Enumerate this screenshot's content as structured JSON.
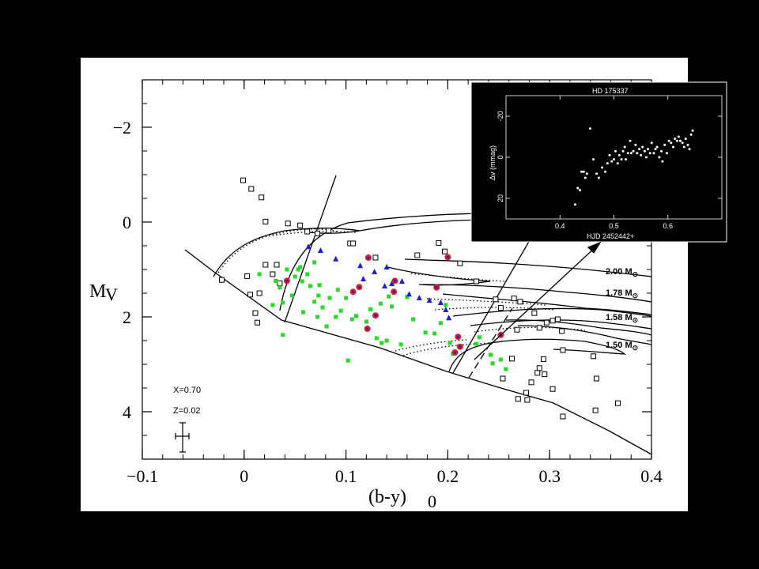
{
  "chart_data": [
    {
      "type": "scatter",
      "title": "",
      "xlabel": "(b-y)",
      "xlabel_sub": "0",
      "ylabel": "M",
      "ylabel_sub": "V",
      "xlim": [
        -0.1,
        0.4
      ],
      "ylim": [
        5.0,
        -3.0
      ],
      "x_ticks": [
        "-0.1",
        "0",
        "0.1",
        "0.2",
        "0.3",
        "0.4"
      ],
      "y_ticks": [
        "-2",
        "0",
        "2",
        "4"
      ],
      "annotations": [
        "X=0.70",
        "Z=0.02"
      ],
      "track_labels": [
        "2.00 M",
        "1.78 M",
        "1.58 M",
        "1.50 M"
      ],
      "track_label_symbol": "⊙",
      "series": [
        {
          "marker": "open-square",
          "color": "#000000",
          "points": [
            [
              -0.001,
              -0.88
            ],
            [
              0.007,
              -0.7
            ],
            [
              0.017,
              -0.52
            ],
            [
              0.021,
              -0.01
            ],
            [
              0.043,
              0.03
            ],
            [
              0.055,
              0.07
            ],
            [
              0.062,
              0.2
            ],
            [
              0.072,
              0.24
            ],
            [
              0.083,
              0.18
            ],
            [
              0.104,
              0.45
            ],
            [
              0.107,
              0.45
            ],
            [
              0.003,
              1.14
            ],
            [
              0.006,
              1.53
            ],
            [
              0.011,
              1.92
            ],
            [
              0.013,
              2.12
            ],
            [
              0.035,
              1.29
            ],
            [
              0.015,
              1.5
            ],
            [
              0.021,
              0.9
            ],
            [
              0.028,
              1.1
            ],
            [
              -0.022,
              1.22
            ],
            [
              0.032,
              0.9
            ],
            [
              0.129,
              0.75
            ],
            [
              0.17,
              0.7
            ],
            [
              0.191,
              0.44
            ],
            [
              0.197,
              0.62
            ],
            [
              0.212,
              0.87
            ],
            [
              0.228,
              1.25
            ],
            [
              0.247,
              1.63
            ],
            [
              0.252,
              1.81
            ],
            [
              0.265,
              1.61
            ],
            [
              0.271,
              1.68
            ],
            [
              0.268,
              2.27
            ],
            [
              0.285,
              1.92
            ],
            [
              0.297,
              2.12
            ],
            [
              0.303,
              2.08
            ],
            [
              0.308,
              2.05
            ],
            [
              0.312,
              2.3
            ],
            [
              0.313,
              2.7
            ],
            [
              0.294,
              2.89
            ],
            [
              0.29,
              3.08
            ],
            [
              0.288,
              3.18
            ],
            [
              0.282,
              3.38
            ],
            [
              0.295,
              3.21
            ],
            [
              0.303,
              3.52
            ],
            [
              0.277,
              3.6
            ],
            [
              0.278,
              3.75
            ],
            [
              0.269,
              3.73
            ],
            [
              0.313,
              4.1
            ],
            [
              0.343,
              2.83
            ],
            [
              0.346,
              3.3
            ],
            [
              0.367,
              3.82
            ],
            [
              0.345,
              3.97
            ],
            [
              0.254,
              3.3
            ],
            [
              0.263,
              2.88
            ],
            [
              0.29,
              2.23
            ]
          ]
        },
        {
          "marker": "filled-square",
          "color": "#22dd22",
          "points": [
            [
              0.015,
              1.1
            ],
            [
              0.031,
              1.24
            ],
            [
              0.035,
              1.38
            ],
            [
              0.038,
              1.7
            ],
            [
              0.042,
              1.0
            ],
            [
              0.047,
              1.55
            ],
            [
              0.05,
              1.15
            ],
            [
              0.055,
              0.95
            ],
            [
              0.057,
              1.25
            ],
            [
              0.062,
              1.1
            ],
            [
              0.065,
              1.35
            ],
            [
              0.069,
              0.85
            ],
            [
              0.069,
              1.68
            ],
            [
              0.074,
              1.33
            ],
            [
              0.073,
              1.55
            ],
            [
              0.077,
              1.8
            ],
            [
              0.081,
              2.2
            ],
            [
              0.084,
              1.6
            ],
            [
              0.092,
              1.43
            ],
            [
              0.095,
              1.87
            ],
            [
              0.1,
              1.6
            ],
            [
              0.106,
              2.05
            ],
            [
              0.11,
              1.98
            ],
            [
              0.12,
              2.1
            ],
            [
              0.124,
              1.84
            ],
            [
              0.134,
              1.72
            ],
            [
              0.142,
              1.57
            ],
            [
              0.145,
              1.78
            ],
            [
              0.16,
              1.58
            ],
            [
              0.13,
              2.45
            ],
            [
              0.135,
              2.55
            ],
            [
              0.14,
              2.5
            ],
            [
              0.154,
              2.58
            ],
            [
              0.178,
              2.33
            ],
            [
              0.187,
              2.35
            ],
            [
              0.193,
              2.13
            ],
            [
              0.198,
              1.75
            ],
            [
              0.202,
              2.55
            ],
            [
              0.211,
              2.62
            ],
            [
              0.228,
              2.57
            ],
            [
              0.231,
              2.43
            ],
            [
              0.242,
              2.8
            ],
            [
              0.244,
              2.98
            ],
            [
              0.252,
              2.9
            ],
            [
              0.257,
              3.1
            ],
            [
              0.205,
              2.78
            ],
            [
              0.166,
              2.05
            ],
            [
              0.038,
              2.38
            ],
            [
              0.058,
              1.9
            ],
            [
              0.102,
              2.92
            ],
            [
              0.053,
              1.0
            ],
            [
              0.028,
              1.75
            ],
            [
              0.072,
              2.0
            ],
            [
              0.09,
              2.0
            ]
          ]
        },
        {
          "marker": "filled-triangle",
          "color": "#1f1fcf",
          "points": [
            [
              0.063,
              0.52
            ],
            [
              0.075,
              0.6
            ],
            [
              0.09,
              0.78
            ],
            [
              0.122,
              0.75
            ],
            [
              0.114,
              0.92
            ],
            [
              0.14,
              0.95
            ],
            [
              0.128,
              1.05
            ],
            [
              0.117,
              1.2
            ],
            [
              0.138,
              1.35
            ],
            [
              0.145,
              1.3
            ],
            [
              0.155,
              1.25
            ],
            [
              0.162,
              1.52
            ],
            [
              0.172,
              1.6
            ],
            [
              0.182,
              1.65
            ],
            [
              0.193,
              1.7
            ],
            [
              0.198,
              1.85
            ],
            [
              0.201,
              2.02
            ]
          ]
        },
        {
          "marker": "filled-circle-red",
          "color": "#dd1e2e",
          "points": [
            [
              0.042,
              1.24
            ],
            [
              0.107,
              1.47
            ],
            [
              0.113,
              1.37
            ],
            [
              0.122,
              0.75
            ],
            [
              0.129,
              1.97
            ],
            [
              0.147,
              1.47
            ],
            [
              0.148,
              1.24
            ],
            [
              0.121,
              2.25
            ],
            [
              0.189,
              1.38
            ],
            [
              0.2,
              0.74
            ],
            [
              0.21,
              2.42
            ],
            [
              0.207,
              2.75
            ],
            [
              0.212,
              2.63
            ],
            [
              0.252,
              2.38
            ]
          ]
        }
      ],
      "error_bar": {
        "x": -0.06,
        "y": 4.5,
        "dx": 0.006,
        "dy": 0.35
      }
    },
    {
      "type": "scatter",
      "title": "HD 175337",
      "xlabel": "HJD 2452442+",
      "ylabel": "Δv (mmag)",
      "xlim": [
        0.3,
        0.7
      ],
      "ylim": [
        30,
        -30
      ],
      "x_ticks": [
        "0.4",
        "0.5",
        "0.6"
      ],
      "y_ticks": [
        "-20",
        "0",
        "20"
      ],
      "points": [
        [
          0.428,
          23
        ],
        [
          0.433,
          15
        ],
        [
          0.437,
          16
        ],
        [
          0.44,
          7
        ],
        [
          0.444,
          7
        ],
        [
          0.447,
          10
        ],
        [
          0.45,
          8
        ],
        [
          0.456,
          -14
        ],
        [
          0.462,
          1
        ],
        [
          0.468,
          8
        ],
        [
          0.472,
          10
        ],
        [
          0.478,
          5
        ],
        [
          0.484,
          7
        ],
        [
          0.488,
          3
        ],
        [
          0.492,
          -1
        ],
        [
          0.496,
          2
        ],
        [
          0.5,
          1
        ],
        [
          0.503,
          -3
        ],
        [
          0.507,
          3
        ],
        [
          0.51,
          -1
        ],
        [
          0.514,
          1
        ],
        [
          0.517,
          -3
        ],
        [
          0.52,
          -5
        ],
        [
          0.522,
          1
        ],
        [
          0.526,
          -2
        ],
        [
          0.53,
          -8
        ],
        [
          0.532,
          -2
        ],
        [
          0.536,
          -3
        ],
        [
          0.54,
          -6
        ],
        [
          0.543,
          -2
        ],
        [
          0.547,
          -4
        ],
        [
          0.55,
          -1
        ],
        [
          0.553,
          -5
        ],
        [
          0.557,
          -3
        ],
        [
          0.56,
          0
        ],
        [
          0.563,
          -4
        ],
        [
          0.567,
          -2
        ],
        [
          0.57,
          -7
        ],
        [
          0.574,
          -2
        ],
        [
          0.577,
          -4
        ],
        [
          0.58,
          -5
        ],
        [
          0.584,
          0
        ],
        [
          0.588,
          -3
        ],
        [
          0.59,
          2
        ],
        [
          0.594,
          -6
        ],
        [
          0.598,
          -2
        ],
        [
          0.602,
          -8
        ],
        [
          0.606,
          -7
        ],
        [
          0.61,
          -5
        ],
        [
          0.613,
          -9
        ],
        [
          0.617,
          -8
        ],
        [
          0.62,
          -10
        ],
        [
          0.623,
          -8
        ],
        [
          0.627,
          -7
        ],
        [
          0.63,
          -5
        ],
        [
          0.633,
          -9
        ],
        [
          0.637,
          -6
        ],
        [
          0.64,
          -4
        ],
        [
          0.643,
          -11
        ],
        [
          0.646,
          -13
        ]
      ]
    }
  ]
}
